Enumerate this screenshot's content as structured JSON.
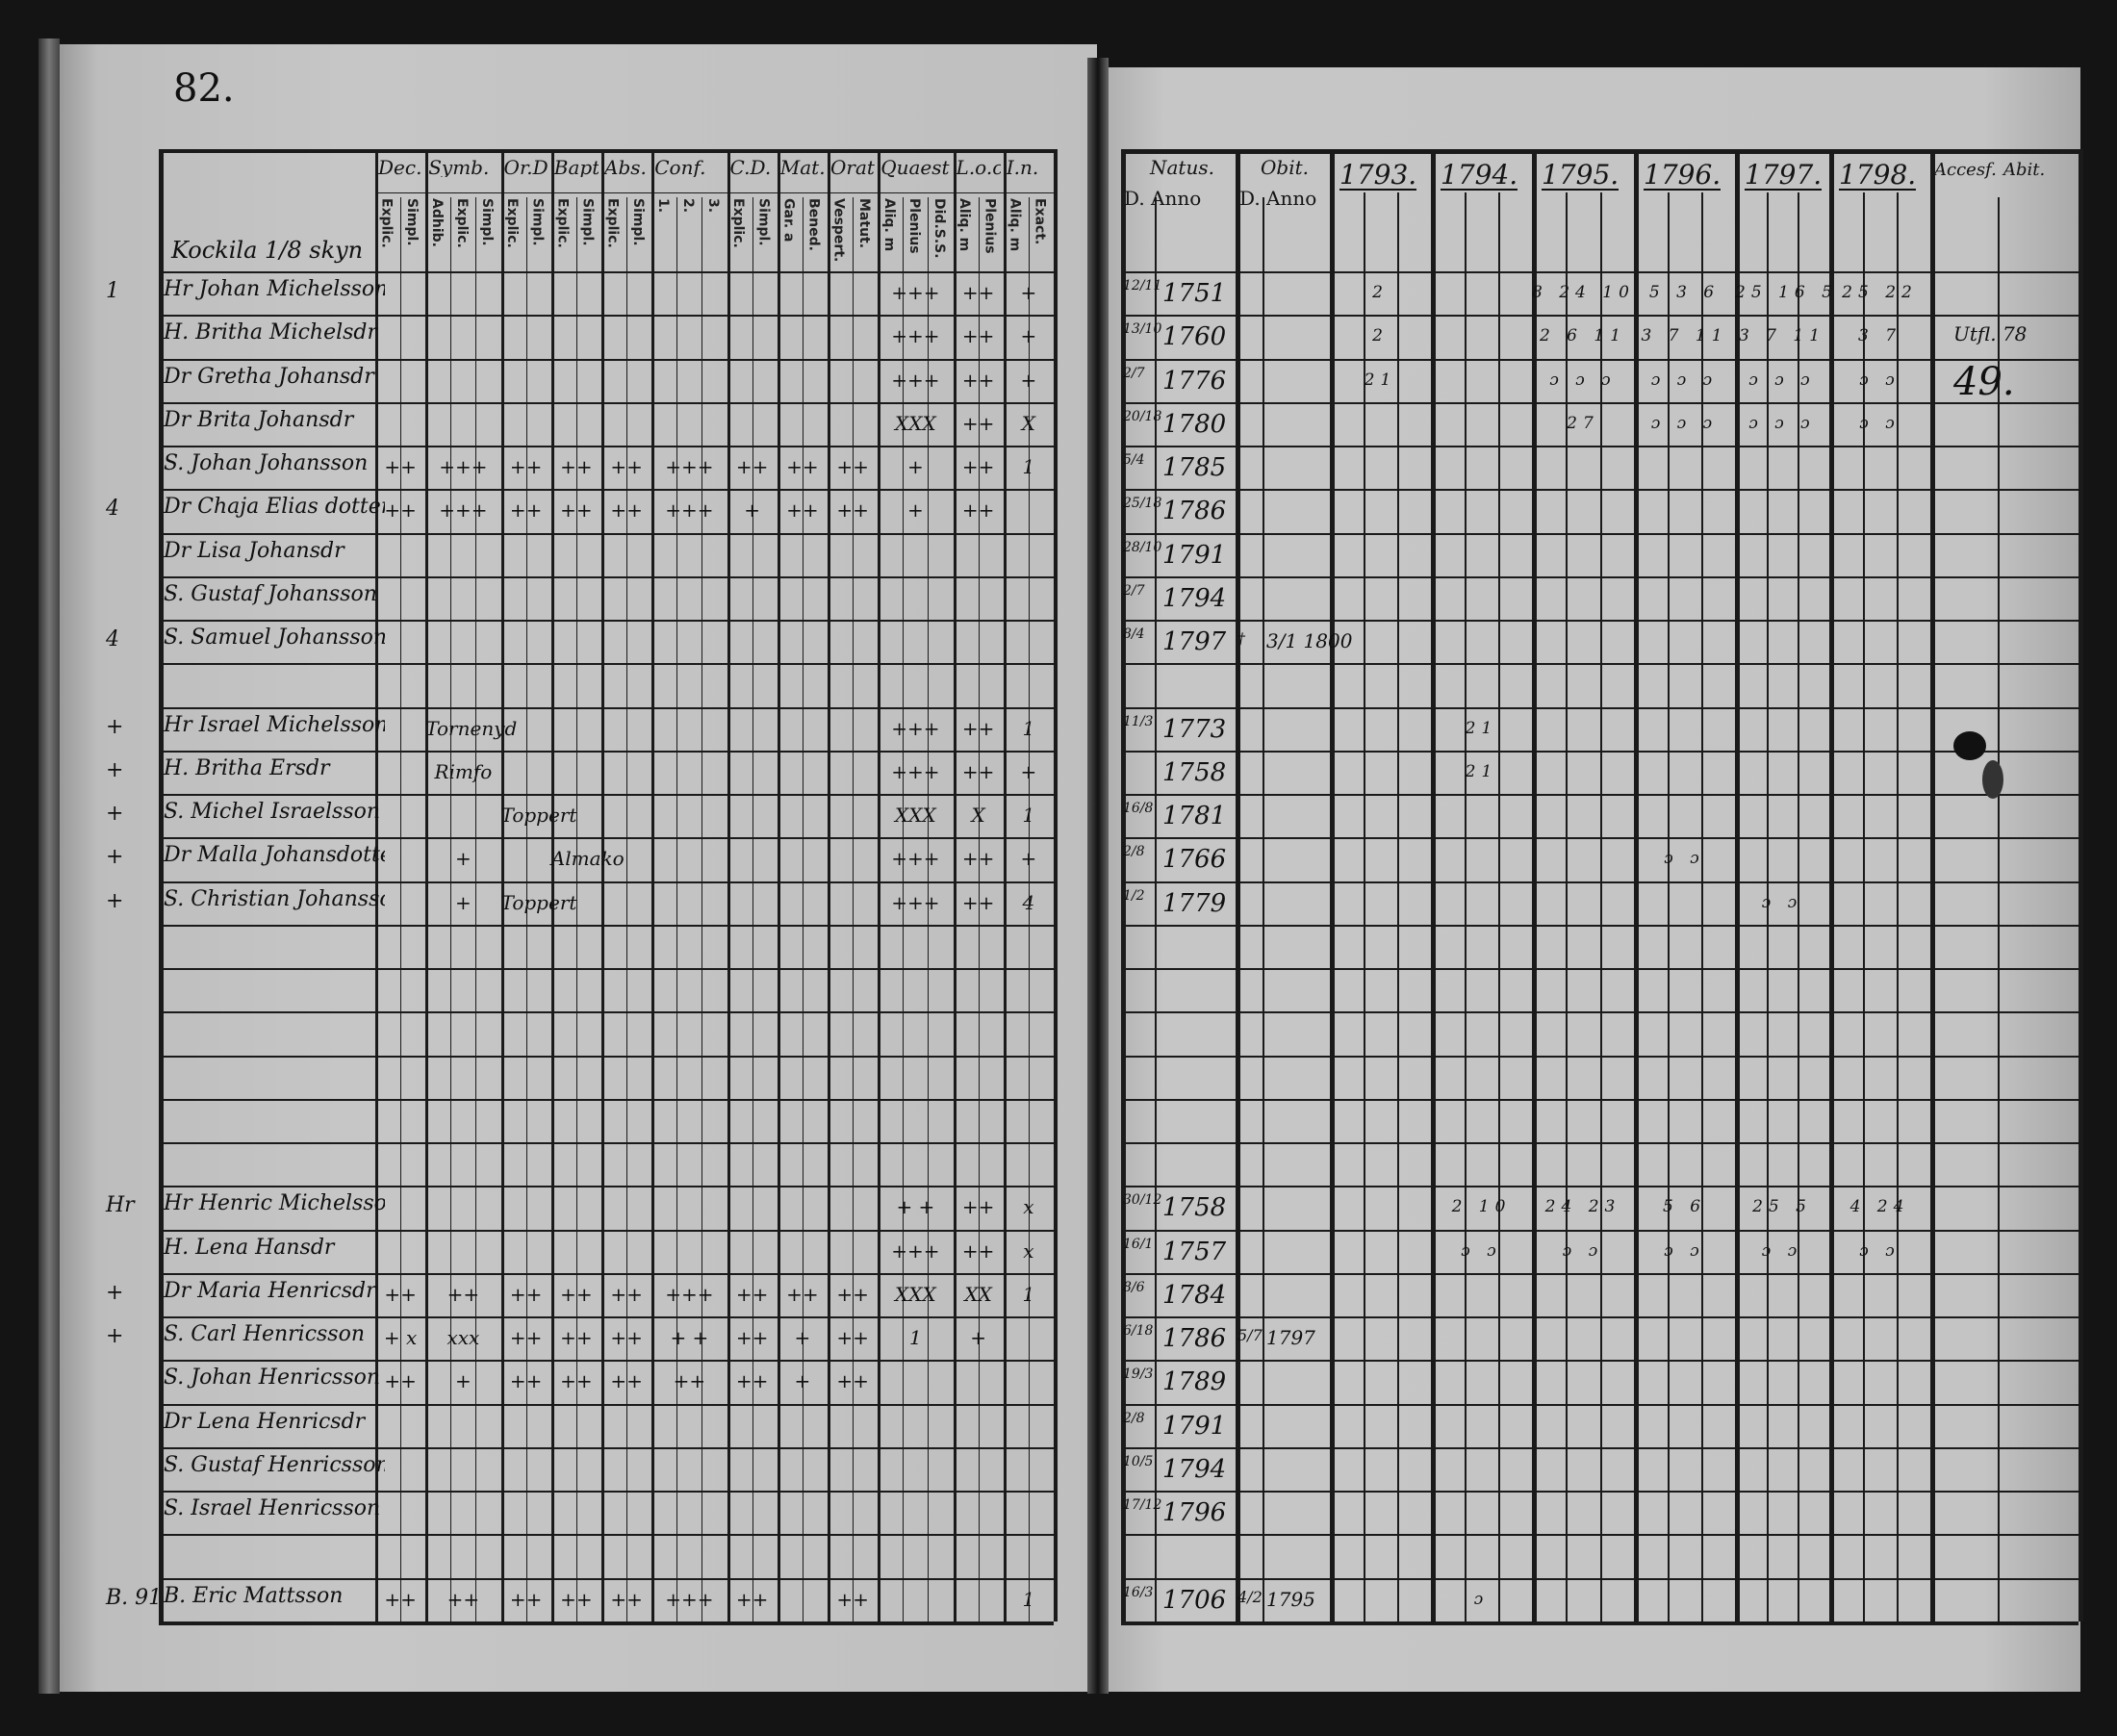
{
  "left_page": {
    "page_number": "82.",
    "village": "Kockila 1/8 skyn",
    "column_groups": [
      {
        "key": "dec",
        "label": "Dec.",
        "subs": [
          "Explic.",
          "Simpl."
        ]
      },
      {
        "key": "symb",
        "label": "Symb.",
        "subs": [
          "Adhib.",
          "Explic.",
          "Simpl."
        ]
      },
      {
        "key": "ord",
        "label": "Or.D.",
        "subs": [
          "Explic.",
          "Simpl."
        ]
      },
      {
        "key": "bapt",
        "label": "Bapt.",
        "subs": [
          "Explic.",
          "Simpl."
        ]
      },
      {
        "key": "abs",
        "label": "Abs.",
        "subs": [
          "Explic.",
          "Simpl."
        ]
      },
      {
        "key": "conf",
        "label": "Conf.",
        "subs": [
          "1.",
          "2.",
          "3."
        ]
      },
      {
        "key": "cd",
        "label": "C.D.",
        "subs": [
          "Explic.",
          "Simpl."
        ]
      },
      {
        "key": "mat",
        "label": "Mat.",
        "subs": [
          "Gar. a",
          "Bened."
        ]
      },
      {
        "key": "orat",
        "label": "Orat.",
        "subs": [
          "Vespert.",
          "Matut."
        ]
      },
      {
        "key": "quaest",
        "label": "Quaest.",
        "subs": [
          "Aliq. m",
          "Plenius",
          "Did.S.S."
        ]
      },
      {
        "key": "loc",
        "label": "L.o.c.",
        "subs": [
          "Aliq. m",
          "Plenius"
        ]
      },
      {
        "key": "in",
        "label": "I.n.",
        "subs": [
          "Aliq. m",
          "Exact."
        ]
      }
    ],
    "rows": [
      {
        "row": 0,
        "margin": "1",
        "name": "Hr Johan Michelsson",
        "cells": {
          "quaest": "+++",
          "loc": "++",
          "in": "+"
        }
      },
      {
        "row": 1,
        "margin": "",
        "name": "H. Britha Michelsdr",
        "cells": {
          "quaest": "+++",
          "loc": "++",
          "in": "+"
        }
      },
      {
        "row": 2,
        "margin": "",
        "name": "Dr Gretha Johansdr",
        "cells": {
          "quaest": "+++",
          "loc": "++",
          "in": "+"
        }
      },
      {
        "row": 3,
        "margin": "",
        "name": "Dr Brita Johansdr",
        "cells": {
          "quaest": "XXX",
          "loc": "++",
          "in": "X"
        }
      },
      {
        "row": 4,
        "margin": "",
        "name": "S. Johan Johansson",
        "cells": {
          "dec": "++",
          "symb": "+++",
          "ord": "++",
          "bapt": "++",
          "abs": "++",
          "conf": "+++",
          "cd": "++",
          "mat": "++",
          "orat": "++",
          "quaest": "+",
          "loc": "++",
          "in": "1"
        }
      },
      {
        "row": 5,
        "margin": "4",
        "name": "Dr Chaja Elias dotter",
        "cells": {
          "dec": "++",
          "symb": "+++",
          "ord": "++",
          "bapt": "++",
          "abs": "++",
          "conf": "+++",
          "cd": "+",
          "mat": "++",
          "orat": "++",
          "quaest": "+",
          "loc": "++"
        }
      },
      {
        "row": 6,
        "margin": "",
        "name": "Dr Lisa Johansdr",
        "cells": {}
      },
      {
        "row": 7,
        "margin": "",
        "name": "S. Gustaf Johansson",
        "cells": {}
      },
      {
        "row": 8,
        "margin": "4",
        "name": "S. Samuel Johansson",
        "cells": {}
      },
      {
        "row": 10,
        "margin": "+",
        "name": "Hr Israel Michelsson",
        "cells": {
          "symb": "Tornenyd",
          "quaest": "+++",
          "loc": "++",
          "in": "1"
        }
      },
      {
        "row": 11,
        "margin": "+",
        "name": "H. Britha Ersdr",
        "cells": {
          "symb": "Rimfo",
          "quaest": "+++",
          "loc": "++",
          "in": "+"
        }
      },
      {
        "row": 12,
        "margin": "+",
        "name": "S. Michel Israelsson",
        "cells": {
          "ord": "Toppert",
          "quaest": "XXX",
          "loc": "X",
          "in": "1"
        }
      },
      {
        "row": 13,
        "margin": "+",
        "name": "Dr Malla Johansdotter",
        "cells": {
          "symb": "+",
          "bapt": "Almako",
          "quaest": "+++",
          "loc": "++",
          "in": "+"
        }
      },
      {
        "row": 14,
        "margin": "+",
        "name": "S. Christian Johansson",
        "cells": {
          "symb": "+",
          "ord": "Toppert",
          "quaest": "+++",
          "loc": "++",
          "in": "4"
        }
      },
      {
        "row": 21,
        "margin": "Hr",
        "name": "Hr Henric Michelsson",
        "cells": {
          "quaest": "+ +",
          "loc": "++",
          "in": "x"
        }
      },
      {
        "row": 22,
        "margin": "",
        "name": "H. Lena Hansdr",
        "cells": {
          "quaest": "+++",
          "loc": "++",
          "in": "x"
        }
      },
      {
        "row": 23,
        "margin": "+",
        "name": "Dr Maria Henricsdr",
        "cells": {
          "dec": "++",
          "symb": "++",
          "ord": "++",
          "bapt": "++",
          "abs": "++",
          "conf": "+++",
          "cd": "++",
          "mat": "++",
          "orat": "++",
          "quaest": "XXX",
          "loc": "XX",
          "in": "1"
        }
      },
      {
        "row": 24,
        "margin": "+",
        "name": "S. Carl Henricsson",
        "cells": {
          "dec": "+ x",
          "symb": "xxx",
          "ord": "++",
          "bapt": "++",
          "abs": "++",
          "conf": "+ +",
          "cd": "++",
          "mat": "+",
          "orat": "++",
          "quaest": "1",
          "loc": "+"
        }
      },
      {
        "row": 25,
        "margin": "",
        "name": "S. Johan Henricsson",
        "cells": {
          "dec": "++",
          "symb": "+",
          "ord": "++",
          "bapt": "++",
          "abs": "++",
          "conf": "++",
          "cd": "++",
          "mat": "+",
          "orat": "++"
        }
      },
      {
        "row": 26,
        "margin": "",
        "name": "Dr Lena Henricsdr",
        "cells": {}
      },
      {
        "row": 27,
        "margin": "",
        "name": "S. Gustaf Henricsson",
        "cells": {}
      },
      {
        "row": 28,
        "margin": "",
        "name": "S. Israel Henricsson",
        "cells": {}
      },
      {
        "row": 30,
        "margin": "B. 91",
        "name": "B. Eric Mattsson",
        "cells": {
          "dec": "++",
          "symb": "++",
          "ord": "++",
          "bapt": "++",
          "abs": "++",
          "conf": "+++",
          "cd": "++",
          "orat": "++",
          "in": "1"
        }
      }
    ]
  },
  "right_page": {
    "natus_label": "Natus.",
    "obit_label": "Obit.",
    "d_anno": "D. Anno",
    "years": [
      "1793.",
      "1794.",
      "1795.",
      "1796.",
      "1797.",
      "1798."
    ],
    "accesf_label": "Accesf.",
    "abit_label": "Abit.",
    "accesf_notes": [
      {
        "row": 1,
        "text": "Utfl. 78"
      },
      {
        "row": 2,
        "text": "49."
      }
    ],
    "rows": [
      {
        "row": 0,
        "day": "12/11",
        "year": "1751",
        "obit_day": "",
        "obit_year": "",
        "marks": [
          "2",
          "",
          "8 24 10",
          "5 3 6",
          "25 16 5",
          "25 22"
        ]
      },
      {
        "row": 1,
        "day": "13/10",
        "year": "1760",
        "obit_day": "",
        "obit_year": "",
        "marks": [
          "2",
          "",
          "2 6 11",
          "3 7 11",
          "3 7 11",
          "3 7"
        ]
      },
      {
        "row": 2,
        "day": "2/7",
        "year": "1776",
        "obit_day": "",
        "obit_year": "",
        "marks": [
          "21",
          "",
          "ɔ ɔ ɔ",
          "ɔ ɔ ɔ",
          "ɔ ɔ ɔ",
          "ɔ ɔ"
        ]
      },
      {
        "row": 3,
        "day": "20/18",
        "year": "1780",
        "obit_day": "",
        "obit_year": "",
        "marks": [
          "",
          "",
          "27",
          "ɔ ɔ ɔ",
          "ɔ ɔ ɔ",
          "ɔ ɔ"
        ]
      },
      {
        "row": 4,
        "day": "5/4",
        "year": "1785",
        "obit_day": "",
        "obit_year": "",
        "marks": [
          "",
          "",
          "",
          "",
          "",
          ""
        ]
      },
      {
        "row": 5,
        "day": "25/18",
        "year": "1786",
        "obit_day": "",
        "obit_year": "",
        "marks": [
          "",
          "",
          "",
          "",
          "",
          ""
        ]
      },
      {
        "row": 6,
        "day": "28/10",
        "year": "1791",
        "obit_day": "",
        "obit_year": "",
        "marks": [
          "",
          "",
          "",
          "",
          "",
          ""
        ]
      },
      {
        "row": 7,
        "day": "2/7",
        "year": "1794",
        "obit_day": "",
        "obit_year": "",
        "marks": [
          "",
          "",
          "",
          "",
          "",
          ""
        ]
      },
      {
        "row": 8,
        "day": "8/4",
        "year": "1797",
        "obit_day": "†",
        "obit_year": "3/1 1800",
        "marks": [
          "",
          "",
          "",
          "",
          "",
          ""
        ]
      },
      {
        "row": 10,
        "day": "11/3",
        "year": "1773",
        "obit_day": "",
        "obit_year": "",
        "marks": [
          "",
          "21",
          "",
          "",
          "",
          ""
        ]
      },
      {
        "row": 11,
        "day": "",
        "year": "1758",
        "obit_day": "",
        "obit_year": "",
        "marks": [
          "",
          "21",
          "",
          "",
          "",
          ""
        ]
      },
      {
        "row": 12,
        "day": "16/8",
        "year": "1781",
        "obit_day": "",
        "obit_year": "",
        "marks": [
          "",
          "",
          "",
          "",
          "",
          ""
        ]
      },
      {
        "row": 13,
        "day": "2/8",
        "year": "1766",
        "obit_day": "",
        "obit_year": "",
        "marks": [
          "",
          "",
          "",
          "ɔ ɔ",
          "",
          ""
        ]
      },
      {
        "row": 14,
        "day": "1/2",
        "year": "1779",
        "obit_day": "",
        "obit_year": "",
        "marks": [
          "",
          "",
          "",
          "",
          "ɔ ɔ",
          ""
        ]
      },
      {
        "row": 21,
        "day": "30/12",
        "year": "1758",
        "obit_day": "",
        "obit_year": "",
        "marks": [
          "",
          "2 10",
          "24 23",
          "5 6",
          "25 5",
          "4 24"
        ]
      },
      {
        "row": 22,
        "day": "16/1",
        "year": "1757",
        "obit_day": "",
        "obit_year": "",
        "marks": [
          "",
          "ɔ ɔ",
          "ɔ ɔ",
          "ɔ ɔ",
          "ɔ ɔ",
          "ɔ ɔ"
        ]
      },
      {
        "row": 23,
        "day": "8/6",
        "year": "1784",
        "obit_day": "",
        "obit_year": "",
        "marks": [
          "",
          "",
          "",
          "",
          "",
          ""
        ]
      },
      {
        "row": 24,
        "day": "6/18",
        "year": "1786",
        "obit_day": "5/7",
        "obit_year": "1797",
        "marks": [
          "",
          "",
          "",
          "",
          "",
          ""
        ]
      },
      {
        "row": 25,
        "day": "19/3",
        "year": "1789",
        "obit_day": "",
        "obit_year": "",
        "marks": [
          "",
          "",
          "",
          "",
          "",
          ""
        ]
      },
      {
        "row": 26,
        "day": "2/8",
        "year": "1791",
        "obit_day": "",
        "obit_year": "",
        "marks": [
          "",
          "",
          "",
          "",
          "",
          ""
        ]
      },
      {
        "row": 27,
        "day": "10/5",
        "year": "1794",
        "obit_day": "",
        "obit_year": "",
        "marks": [
          "",
          "",
          "",
          "",
          "",
          ""
        ]
      },
      {
        "row": 28,
        "day": "17/12",
        "year": "1796",
        "obit_day": "",
        "obit_year": "",
        "marks": [
          "",
          "",
          "",
          "",
          "",
          ""
        ]
      },
      {
        "row": 30,
        "day": "16/3",
        "year": "1706",
        "obit_day": "4/2",
        "obit_year": "1795",
        "marks": [
          "",
          "ɔ",
          "",
          "",
          "",
          ""
        ]
      }
    ]
  },
  "colors": {
    "paper": "#c2c2c2",
    "ink": "#111111",
    "background": "#141414"
  }
}
